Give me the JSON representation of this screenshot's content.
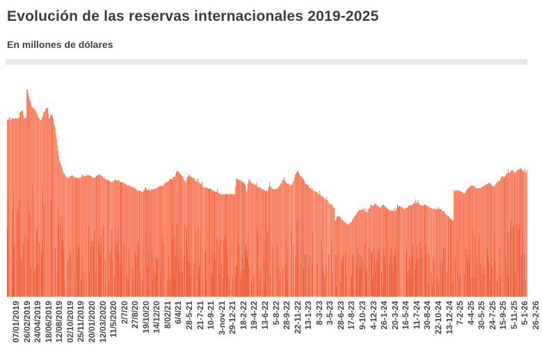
{
  "chart_data": {
    "type": "bar",
    "title": "Evolución de las reservas internacionales 2019-2025",
    "subtitle": "En millones de dólares",
    "xlabel": "",
    "ylabel": "",
    "y_axis_labels_visible": false,
    "grid": false,
    "legend": "none",
    "values_scale": "relative_0_100",
    "ylim": [
      0,
      100
    ],
    "x_labels": [
      "07/01/2019",
      "26/02/2019",
      "24/04/2019",
      "18/06/2019",
      "12/08/2019",
      "02/10/2019",
      "25/11/2019",
      "20/01/2020",
      "12/03/2020",
      "11/5/2020",
      "2/7/20",
      "27/8/20",
      "19/10/20",
      "14/12/20",
      "8/02/21",
      "6/4/21",
      "28-5-21",
      "21-7-21",
      "10-9-21",
      "3-nov-21",
      "29-12-21",
      "18-2-22",
      "19-4-22",
      "13-6-22",
      "5-8-22",
      "28-9-22",
      "22-11-22",
      "13-1-23",
      "8-3-23",
      "3-5-23",
      "28-6-23",
      "17-8-23",
      "9-10-23",
      "4-12-23",
      "26-1-24",
      "20-3-24",
      "16-5-24",
      "11-7-24",
      "30-8-24",
      "22-10-24",
      "13-12-24",
      "7-2-25",
      "4-4-25",
      "30-5-25",
      "24-7-25",
      "15-9-25",
      "5-11-25",
      "5-1-26",
      "26-2-26"
    ],
    "envelope": [
      [
        10,
        85
      ],
      [
        20,
        85.3
      ],
      [
        27,
        85.7
      ],
      [
        28,
        88.7
      ],
      [
        32,
        89
      ],
      [
        34,
        85.7
      ],
      [
        37,
        86.3
      ],
      [
        38,
        99.7
      ],
      [
        39,
        100
      ],
      [
        40,
        98
      ],
      [
        41,
        95.7
      ],
      [
        43,
        93.7
      ],
      [
        46,
        90.7
      ],
      [
        50,
        90
      ],
      [
        53,
        87.3
      ],
      [
        56,
        85.7
      ],
      [
        58,
        84.3
      ],
      [
        60,
        85.7
      ],
      [
        62,
        88
      ],
      [
        64,
        89
      ],
      [
        66,
        90.3
      ],
      [
        68,
        90.3
      ],
      [
        70,
        85
      ],
      [
        72,
        87.3
      ],
      [
        75,
        87
      ],
      [
        77,
        83
      ],
      [
        79,
        80.7
      ],
      [
        81,
        75.7
      ],
      [
        83,
        69.7
      ],
      [
        85,
        65.7
      ],
      [
        88,
        62.3
      ],
      [
        91,
        59.3
      ],
      [
        94,
        57.7
      ],
      [
        98,
        56.7
      ],
      [
        102,
        58
      ],
      [
        106,
        57.7
      ],
      [
        110,
        57
      ],
      [
        114,
        57
      ],
      [
        118,
        58.3
      ],
      [
        122,
        57.7
      ],
      [
        127,
        58.3
      ],
      [
        132,
        57.3
      ],
      [
        136,
        57
      ],
      [
        141,
        58.3
      ],
      [
        146,
        58
      ],
      [
        150,
        56.7
      ],
      [
        155,
        55.7
      ],
      [
        160,
        55
      ],
      [
        165,
        56
      ],
      [
        170,
        55.7
      ],
      [
        175,
        54.7
      ],
      [
        180,
        54
      ],
      [
        186,
        53
      ],
      [
        192,
        52
      ],
      [
        197,
        51
      ],
      [
        202,
        50.3
      ],
      [
        205,
        50
      ],
      [
        208,
        52
      ],
      [
        212,
        51.3
      ],
      [
        216,
        51
      ],
      [
        220,
        51.7
      ],
      [
        225,
        52
      ],
      [
        229,
        53
      ],
      [
        234,
        53.3
      ],
      [
        238,
        55
      ],
      [
        243,
        56
      ],
      [
        248,
        57
      ],
      [
        251,
        57.7
      ],
      [
        253,
        60
      ],
      [
        256,
        60.3
      ],
      [
        259,
        58.7
      ],
      [
        263,
        56.7
      ],
      [
        266,
        55
      ],
      [
        268,
        56.7
      ],
      [
        271,
        58
      ],
      [
        274,
        57.7
      ],
      [
        278,
        56.7
      ],
      [
        282,
        55.3
      ],
      [
        287,
        54
      ],
      [
        292,
        53
      ],
      [
        297,
        52
      ],
      [
        302,
        51.7
      ],
      [
        307,
        50.7
      ],
      [
        312,
        50
      ],
      [
        317,
        49.3
      ],
      [
        322,
        49.3
      ],
      [
        327,
        49
      ],
      [
        332,
        49.3
      ],
      [
        337,
        49.3
      ],
      [
        339,
        56.3
      ],
      [
        343,
        56
      ],
      [
        347,
        55.3
      ],
      [
        351,
        54.7
      ],
      [
        354,
        50
      ],
      [
        357,
        56
      ],
      [
        361,
        54.7
      ],
      [
        365,
        54
      ],
      [
        369,
        53
      ],
      [
        373,
        52.3
      ],
      [
        377,
        51.7
      ],
      [
        381,
        51
      ],
      [
        384,
        50.3
      ],
      [
        387,
        53.3
      ],
      [
        390,
        52.3
      ],
      [
        394,
        51.7
      ],
      [
        398,
        52
      ],
      [
        402,
        53.7
      ],
      [
        406,
        56
      ],
      [
        409,
        55.7
      ],
      [
        413,
        54.3
      ],
      [
        417,
        53.3
      ],
      [
        420,
        54.3
      ],
      [
        423,
        57.3
      ],
      [
        426,
        60
      ],
      [
        428,
        60.3
      ],
      [
        431,
        58.3
      ],
      [
        434,
        57
      ],
      [
        438,
        54.7
      ],
      [
        442,
        53.7
      ],
      [
        446,
        52
      ],
      [
        450,
        51
      ],
      [
        454,
        50.3
      ],
      [
        458,
        49.3
      ],
      [
        462,
        48.3
      ],
      [
        466,
        47
      ],
      [
        470,
        46
      ],
      [
        474,
        44.7
      ],
      [
        478,
        43.3
      ],
      [
        480,
        42.7
      ],
      [
        481,
        36.3
      ],
      [
        484,
        38.7
      ],
      [
        488,
        38.3
      ],
      [
        491,
        37
      ],
      [
        494,
        36
      ],
      [
        498,
        35
      ],
      [
        501,
        35
      ],
      [
        505,
        36.3
      ],
      [
        509,
        38.7
      ],
      [
        513,
        40.3
      ],
      [
        517,
        41.7
      ],
      [
        520,
        42.3
      ],
      [
        524,
        41
      ],
      [
        528,
        40.7
      ],
      [
        532,
        43.7
      ],
      [
        536,
        43.3
      ],
      [
        539,
        44.7
      ],
      [
        542,
        43.3
      ],
      [
        546,
        43
      ],
      [
        550,
        44
      ],
      [
        554,
        42.7
      ],
      [
        558,
        42
      ],
      [
        562,
        41.3
      ],
      [
        566,
        41
      ],
      [
        570,
        42.3
      ],
      [
        574,
        43.3
      ],
      [
        578,
        42.7
      ],
      [
        582,
        42.3
      ],
      [
        586,
        43.3
      ],
      [
        590,
        44
      ],
      [
        594,
        44.7
      ],
      [
        598,
        45.3
      ],
      [
        602,
        44.3
      ],
      [
        606,
        43.7
      ],
      [
        610,
        44.3
      ],
      [
        614,
        43.3
      ],
      [
        618,
        42.7
      ],
      [
        622,
        42.3
      ],
      [
        626,
        41.7
      ],
      [
        630,
        42.7
      ],
      [
        635,
        41.3
      ],
      [
        640,
        40
      ],
      [
        644,
        38.7
      ],
      [
        648,
        37.3
      ],
      [
        651,
        36.3
      ],
      [
        652,
        50.7
      ],
      [
        656,
        51.3
      ],
      [
        660,
        51
      ],
      [
        664,
        50
      ],
      [
        667,
        49.3
      ],
      [
        670,
        51.3
      ],
      [
        673,
        52
      ],
      [
        676,
        53
      ],
      [
        679,
        53.7
      ],
      [
        682,
        52.7
      ],
      [
        685,
        52
      ],
      [
        688,
        51.7
      ],
      [
        691,
        52
      ],
      [
        694,
        53
      ],
      [
        697,
        53.3
      ],
      [
        700,
        54.3
      ],
      [
        703,
        55
      ],
      [
        706,
        53.7
      ],
      [
        709,
        52.7
      ],
      [
        712,
        54
      ],
      [
        715,
        55.3
      ],
      [
        718,
        55.7
      ],
      [
        721,
        58.3
      ],
      [
        724,
        57.3
      ],
      [
        727,
        59
      ],
      [
        730,
        60
      ],
      [
        733,
        59.7
      ],
      [
        736,
        61
      ],
      [
        739,
        59.3
      ],
      [
        742,
        60.3
      ],
      [
        745,
        61
      ],
      [
        748,
        61.7
      ],
      [
        751,
        60.3
      ],
      [
        754,
        60
      ],
      [
        757,
        59.7
      ]
    ],
    "colors": {
      "bar_base": "#f7866a",
      "bar_light": "#f99a7e",
      "bar_medium": "#f47a5a",
      "bar_dark_streak": "#ec6442",
      "bar_dark_full": "#ee6a45",
      "title_text": "#3b3b3b",
      "axis_text": "#454545",
      "divider": "#e8e8e8"
    }
  }
}
